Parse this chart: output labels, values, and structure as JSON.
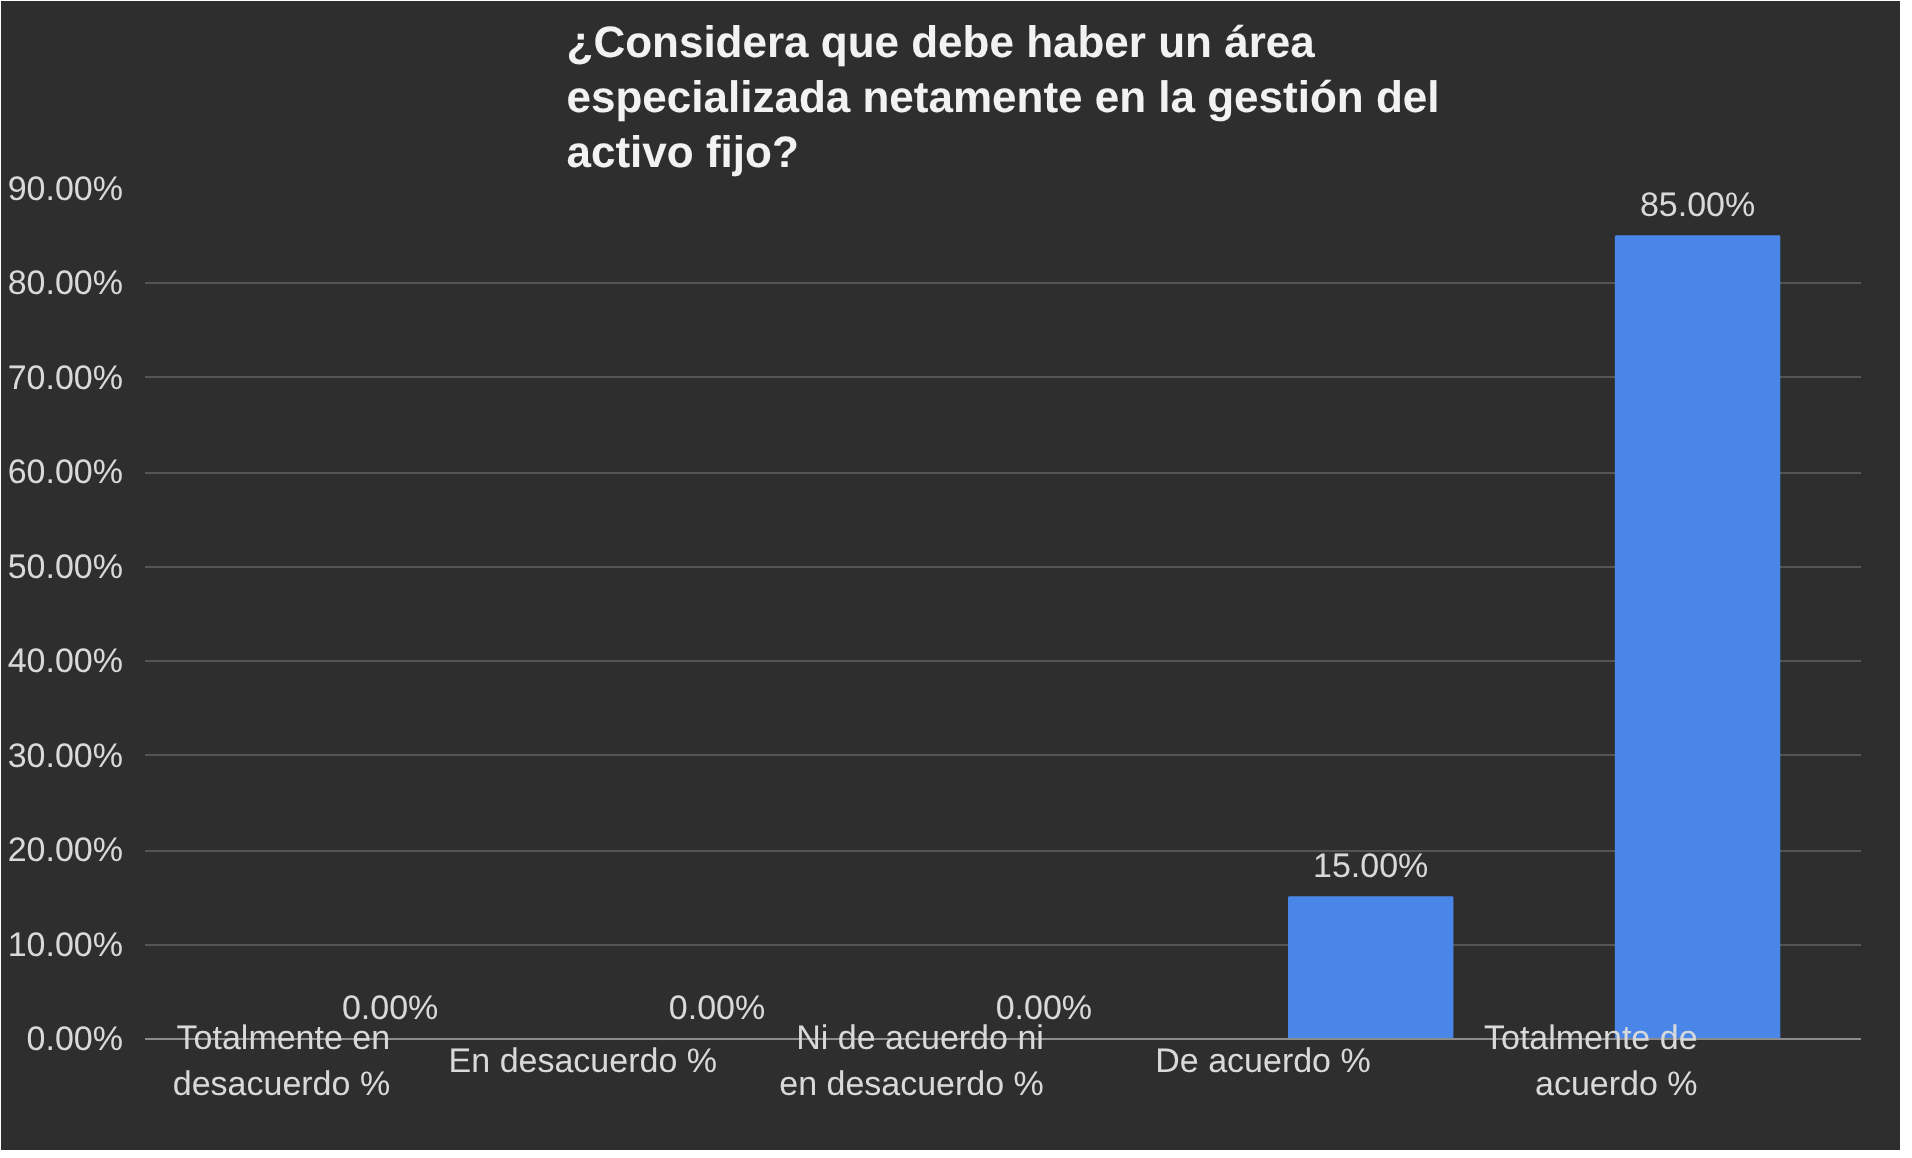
{
  "chart_data": {
    "type": "bar",
    "title": "¿Considera que debe haber un área especializada netamente en la gestión del activo fijo?",
    "categories": [
      "Totalmente en desacuerdo %",
      "En desacuerdo %",
      "Ni de acuerdo ni en desacuerdo %",
      "De acuerdo %",
      "Totalmente de acuerdo %"
    ],
    "values": [
      0,
      0,
      0,
      15,
      85
    ],
    "value_labels": [
      "0.00%",
      "0.00%",
      "0.00%",
      "15.00%",
      "85.00%"
    ],
    "color": "#4a86e8",
    "ylim": [
      0,
      90
    ],
    "yticks": [
      {
        "value": 0,
        "label": "0.00%"
      },
      {
        "value": 10,
        "label": "10.00%"
      },
      {
        "value": 20,
        "label": "20.00%"
      },
      {
        "value": 30,
        "label": "30.00%"
      },
      {
        "value": 40,
        "label": "40.00%"
      },
      {
        "value": 50,
        "label": "50.00%"
      },
      {
        "value": 60,
        "label": "60.00%"
      },
      {
        "value": 70,
        "label": "70.00%"
      },
      {
        "value": 80,
        "label": "80.00%"
      },
      {
        "value": 90,
        "label": "90.00%"
      }
    ],
    "grid": "y"
  }
}
